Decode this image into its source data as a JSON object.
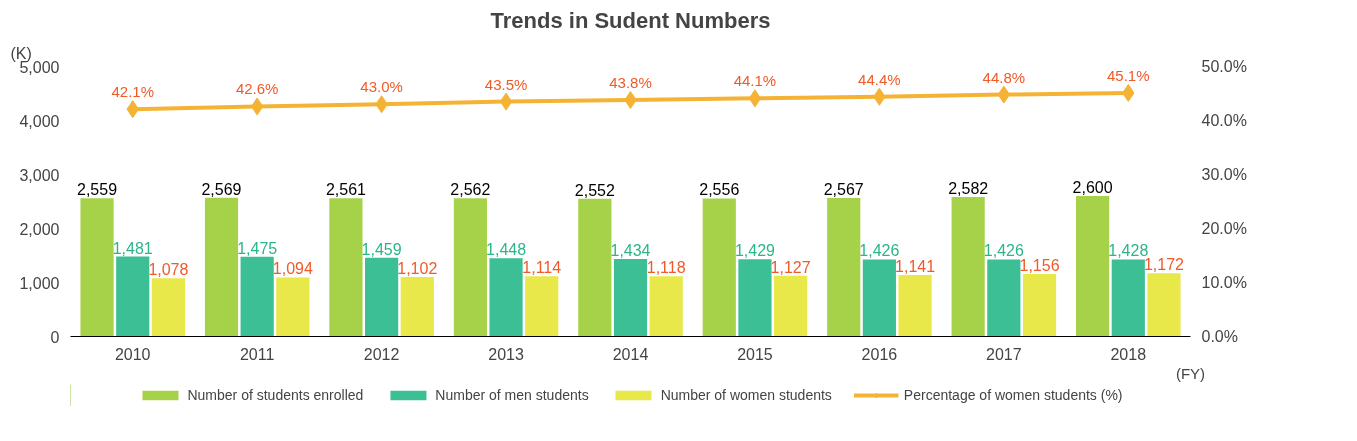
{
  "chart_data": {
    "type": "bar",
    "title": "Trends in Sudent Numbers",
    "ylabel": "(K)",
    "xlabel": "(FY)",
    "categories": [
      "2010",
      "2011",
      "2012",
      "2013",
      "2014",
      "2015",
      "2016",
      "2017",
      "2018"
    ],
    "series": [
      {
        "name": "Number of students enrolled",
        "color": "#a6d24a",
        "values": [
          2559,
          2569,
          2561,
          2562,
          2552,
          2556,
          2567,
          2582,
          2600
        ],
        "value_labels": [
          "2,559",
          "2,569",
          "2,561",
          "2,562",
          "2,552",
          "2,556",
          "2,567",
          "2,582",
          "2,600"
        ]
      },
      {
        "name": "Number of men students",
        "color": "#3dbf95",
        "values": [
          1481,
          1475,
          1459,
          1448,
          1434,
          1429,
          1426,
          1426,
          1428
        ],
        "value_labels": [
          "1,481",
          "1,475",
          "1,459",
          "1,448",
          "1,434",
          "1,429",
          "1,426",
          "1,426",
          "1,428"
        ]
      },
      {
        "name": "Number of women students",
        "color": "#e8e84a",
        "values": [
          1078,
          1094,
          1102,
          1114,
          1118,
          1127,
          1141,
          1156,
          1172
        ],
        "value_labels": [
          "1,078",
          "1,094",
          "1,102",
          "1,114",
          "1,118",
          "1,127",
          "1,141",
          "1,156",
          "1,172"
        ]
      },
      {
        "name": "Percentage of women students (%)",
        "type": "line",
        "axis": "y2",
        "color": "#f5b335",
        "values": [
          42.1,
          42.6,
          43.0,
          43.5,
          43.8,
          44.1,
          44.4,
          44.8,
          45.1
        ],
        "value_labels": [
          "42.1%",
          "42.6%",
          "43.0%",
          "43.5%",
          "43.8%",
          "44.1%",
          "44.4%",
          "44.8%",
          "45.1%"
        ]
      }
    ],
    "ylim": [
      0,
      5000
    ],
    "yticks": [
      0,
      {
        "value": 1000,
        "label": "1,000"
      },
      {
        "value": 2000,
        "label": "2,000"
      },
      {
        "value": 3000,
        "label": "3,000"
      },
      {
        "value": 4000,
        "label": "4,000"
      },
      {
        "value": 5000,
        "label": "5,000"
      }
    ],
    "y2lim": [
      0,
      50
    ],
    "y2ticks": [
      {
        "value": 0,
        "label": "0.0%"
      },
      {
        "value": 10,
        "label": "10.0%"
      },
      {
        "value": 20,
        "label": "20.0%"
      },
      {
        "value": 30,
        "label": "30.0%"
      },
      {
        "value": 40,
        "label": "40.0%"
      },
      {
        "value": 50,
        "label": "50.0%"
      }
    ],
    "marker": "diamond",
    "legend": "bottom",
    "grid": false
  }
}
